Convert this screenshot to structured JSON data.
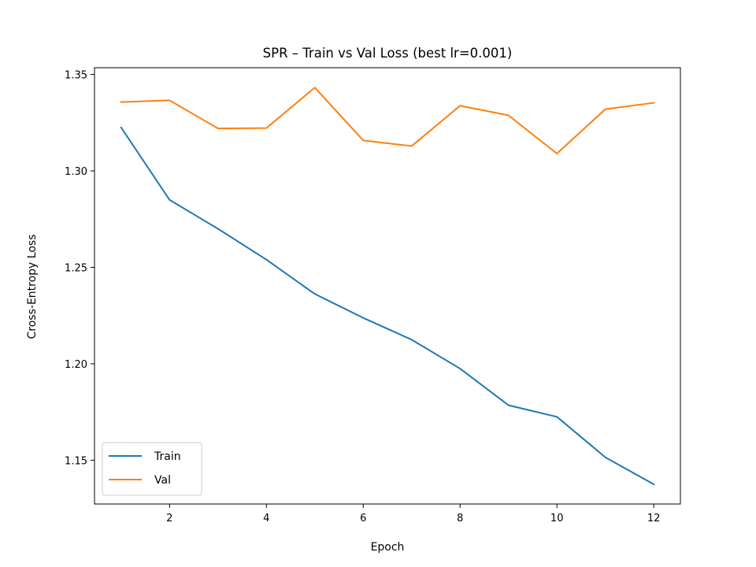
{
  "chart_data": {
    "type": "line",
    "title": "SPR – Train vs Val Loss (best lr=0.001)",
    "xlabel": "Epoch",
    "ylabel": "Cross-Entropy Loss",
    "xlim": [
      0.45,
      12.55
    ],
    "ylim": [
      1.1273,
      1.3535
    ],
    "xticks": [
      2,
      4,
      6,
      8,
      10,
      12
    ],
    "yticks": [
      1.15,
      1.2,
      1.25,
      1.3,
      1.35
    ],
    "ytick_labels": [
      "1.15",
      "1.20",
      "1.25",
      "1.30",
      "1.35"
    ],
    "grid": false,
    "legend_position": "lower-left",
    "x": [
      1,
      2,
      3,
      4,
      5,
      6,
      7,
      8,
      9,
      10,
      11,
      12
    ],
    "series": [
      {
        "name": "Train",
        "color": "#1f77b4",
        "values": [
          1.3225,
          1.285,
          1.27,
          1.254,
          1.2362,
          1.2238,
          1.2125,
          1.1975,
          1.1785,
          1.1725,
          1.1515,
          1.1375
        ]
      },
      {
        "name": "Val",
        "color": "#ff7f0e",
        "values": [
          1.3357,
          1.3366,
          1.322,
          1.3222,
          1.3432,
          1.3158,
          1.3129,
          1.3338,
          1.3288,
          1.309,
          1.332,
          1.3353
        ]
      }
    ]
  }
}
